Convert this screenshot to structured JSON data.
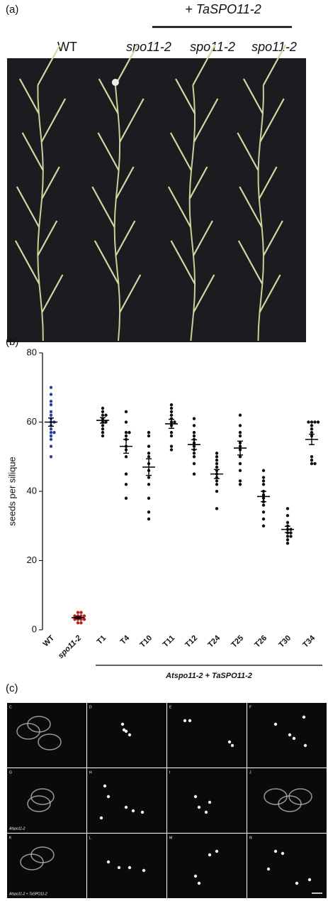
{
  "panel_a": {
    "label": "(a)",
    "construct": "+ TaSPO11-2",
    "lanes": [
      "WT",
      "spo11-2",
      "spo11-2",
      "spo11-2"
    ]
  },
  "chart_data": {
    "type": "dotplot",
    "label": "(b)",
    "ylabel": "seeds per silique",
    "ylim": [
      0,
      80
    ],
    "yticks": [
      0,
      20,
      40,
      60,
      80
    ],
    "categories": [
      "WT",
      "spo11-2",
      "T1",
      "T4",
      "T10",
      "T11",
      "T12",
      "T24",
      "T25",
      "T26",
      "T30",
      "T34"
    ],
    "colors": [
      "#2b3f9e",
      "#b8231c",
      "#111111",
      "#111111",
      "#111111",
      "#111111",
      "#111111",
      "#111111",
      "#111111",
      "#111111",
      "#111111",
      "#111111"
    ],
    "points": [
      [
        70,
        68,
        66,
        65,
        63,
        62,
        61,
        60,
        60,
        59,
        58,
        57,
        57,
        56,
        55,
        53,
        50
      ],
      [
        5,
        5,
        4,
        4,
        4,
        3,
        3,
        3,
        2,
        2,
        3,
        4
      ],
      [
        64,
        63,
        62,
        62,
        61,
        60,
        60,
        59,
        58,
        57,
        56
      ],
      [
        63,
        60,
        57,
        57,
        56,
        55,
        53,
        52,
        50,
        45,
        42,
        38
      ],
      [
        57,
        56,
        53,
        51,
        50,
        48,
        46,
        44,
        42,
        38,
        34,
        32
      ],
      [
        65,
        64,
        63,
        62,
        61,
        60,
        60,
        59,
        57,
        56,
        53,
        52
      ],
      [
        61,
        59,
        57,
        56,
        55,
        54,
        53,
        52,
        51,
        50,
        48,
        45
      ],
      [
        51,
        50,
        49,
        48,
        47,
        46,
        45,
        44,
        43,
        42,
        40,
        35
      ],
      [
        62,
        59,
        57,
        56,
        54,
        53,
        52,
        50,
        48,
        46,
        43,
        42
      ],
      [
        46,
        44,
        43,
        42,
        40,
        39,
        38,
        37,
        36,
        34,
        32,
        30
      ],
      [
        35,
        33,
        31,
        30,
        29,
        29,
        28,
        28,
        27,
        27,
        26,
        25
      ],
      [
        60,
        60,
        60,
        60,
        59,
        58,
        57,
        56,
        50,
        49,
        48,
        48
      ]
    ],
    "means": [
      60,
      3.5,
      60.5,
      53,
      47,
      59.5,
      53.5,
      45,
      52.5,
      38.5,
      29,
      55
    ],
    "sems": [
      1.2,
      0.3,
      0.8,
      2,
      2.4,
      1.3,
      1.4,
      1.3,
      2,
      1.5,
      0.9,
      1.5
    ],
    "group_label": "Atspo11-2 + TaSPO11-2"
  },
  "panel_c": {
    "label": "(c)",
    "cells": [
      "C",
      "D",
      "E",
      "F",
      "G",
      "H",
      "I",
      "J",
      "K",
      "L",
      "M",
      "N"
    ],
    "row_labels": [
      "Atspo11-2",
      "Atspo11-2 + TaSPO11-2"
    ]
  }
}
